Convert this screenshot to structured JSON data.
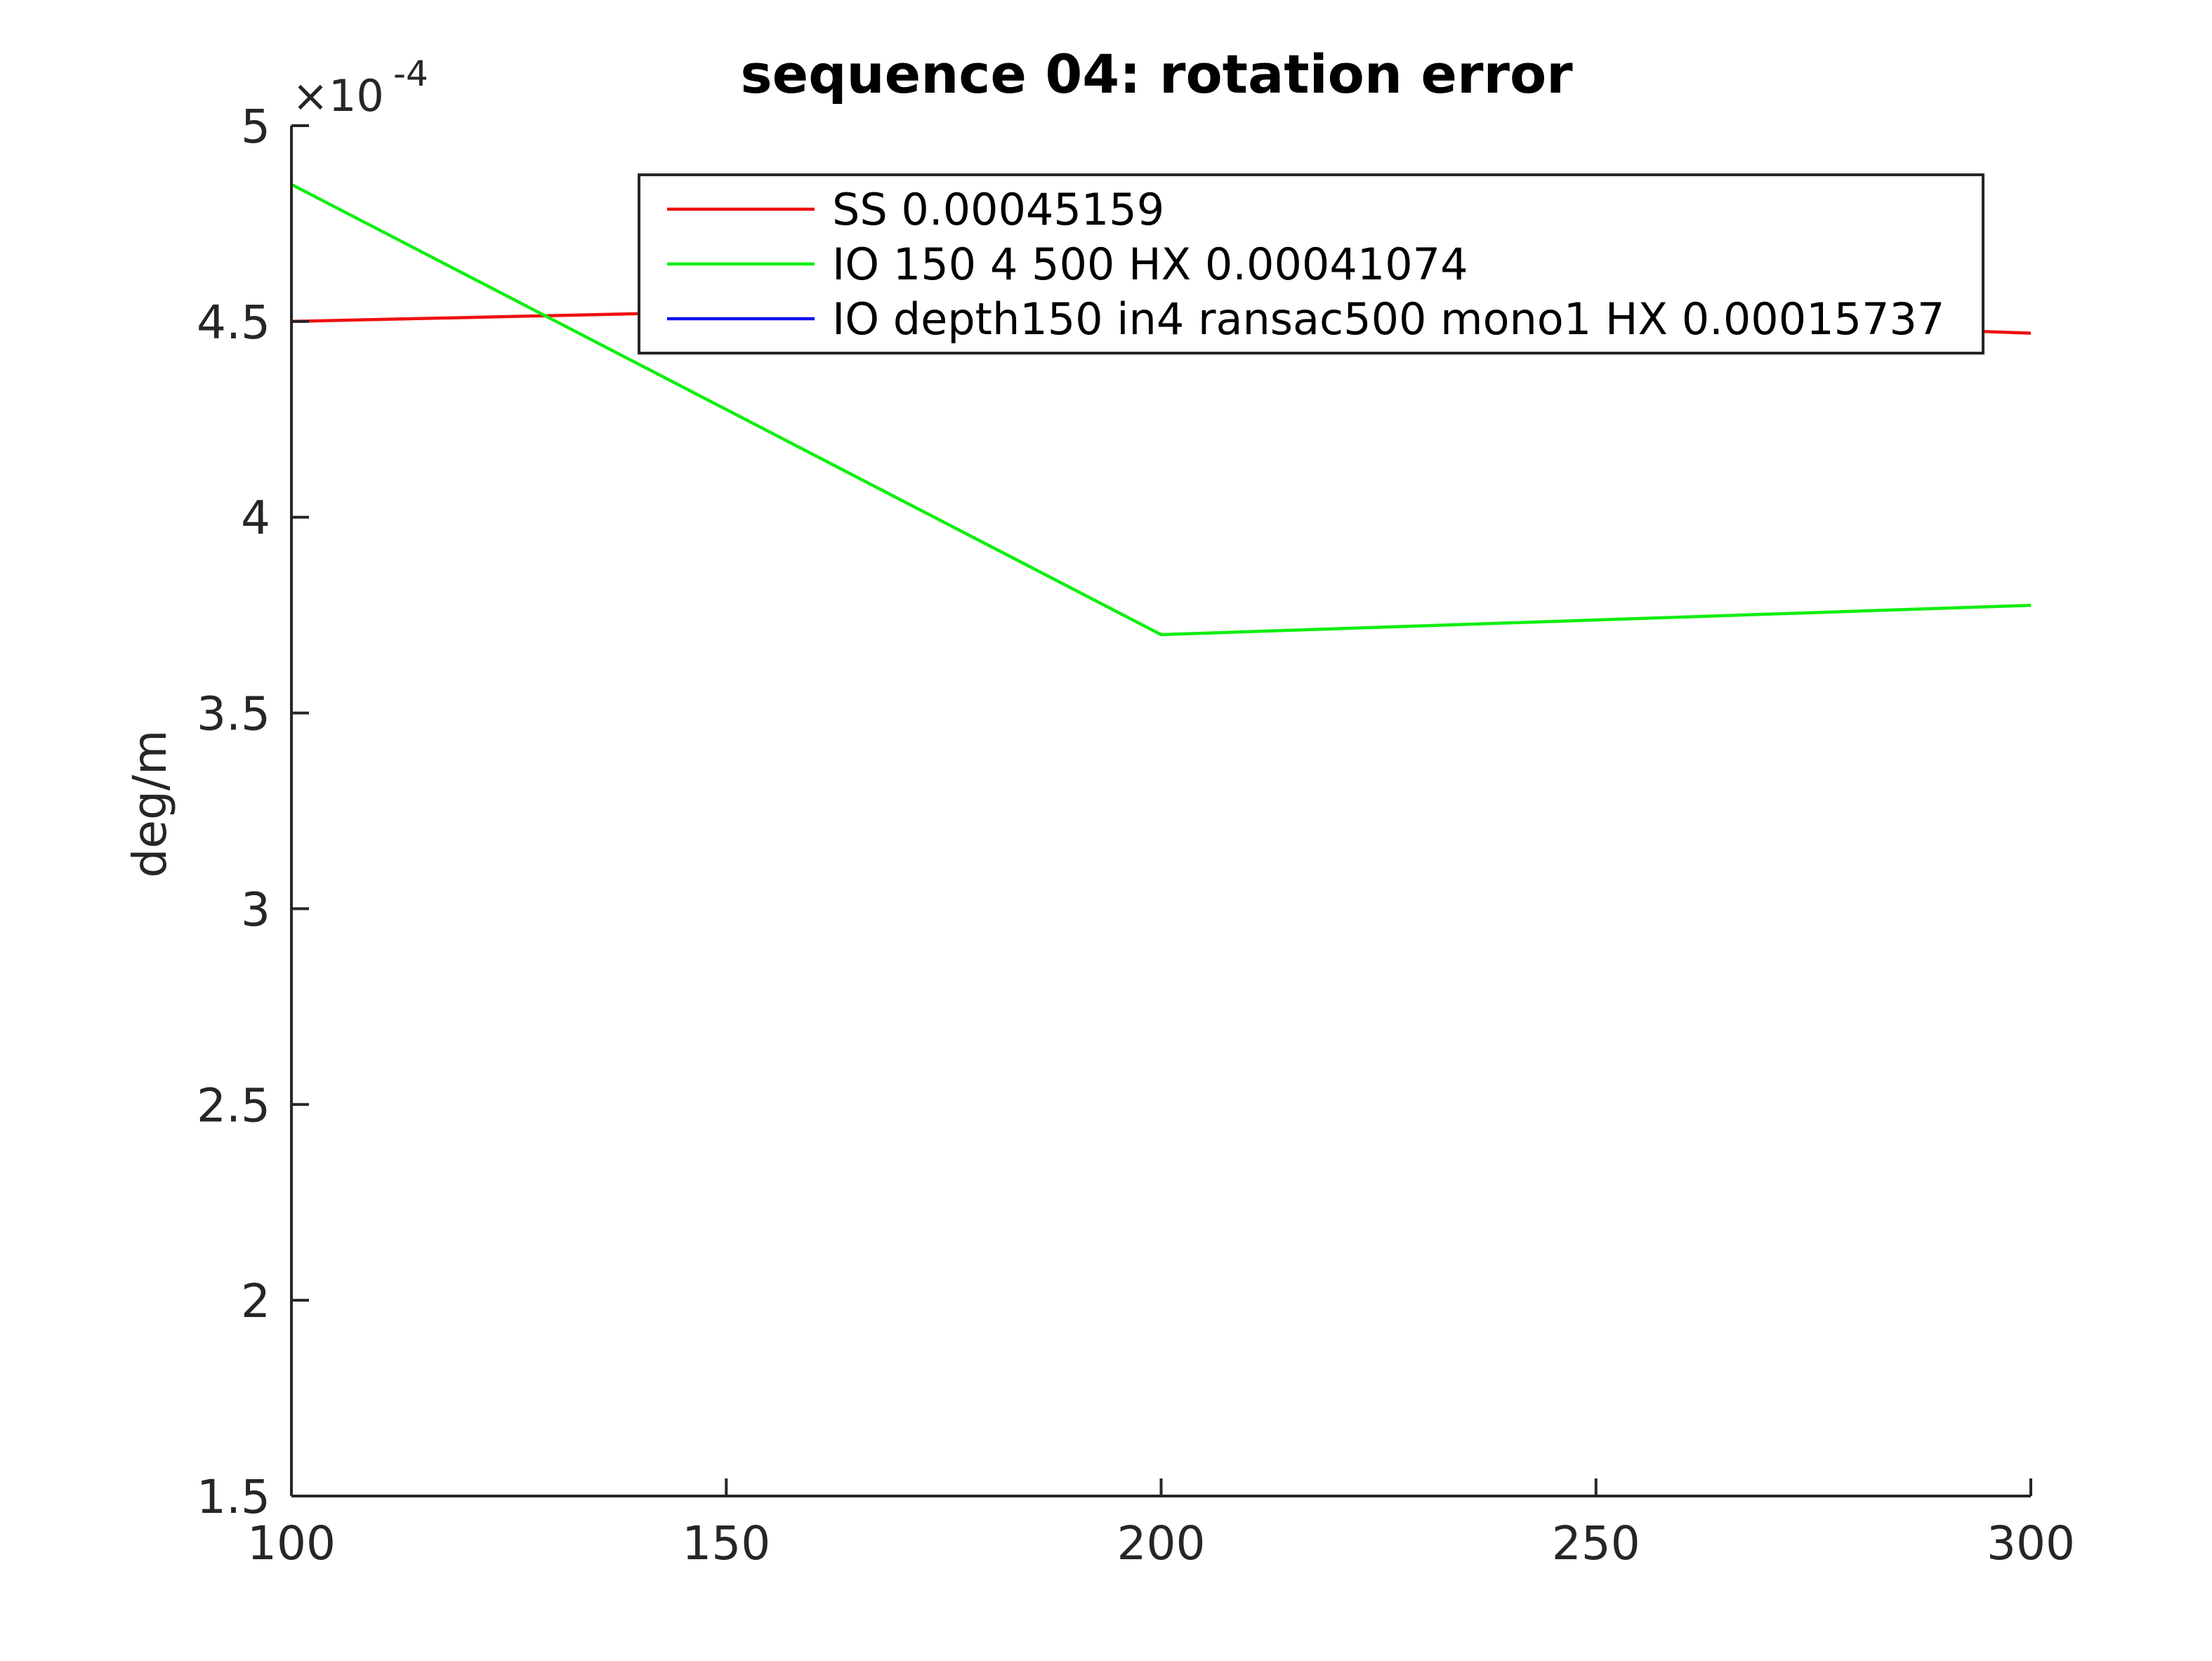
{
  "chart_data": {
    "type": "line",
    "title": "sequence 04: rotation error",
    "xlabel": "",
    "ylabel": "deg/m",
    "exponent_label": {
      "base": "×10",
      "power": "-4"
    },
    "xlim": [
      100,
      300
    ],
    "ylim": [
      1.5,
      5
    ],
    "x_ticks": [
      100,
      150,
      200,
      250,
      300
    ],
    "x_tick_labels": [
      "100",
      "150",
      "200",
      "250",
      "300"
    ],
    "y_ticks": [
      1.5,
      2,
      2.5,
      3,
      3.5,
      4,
      4.5,
      5
    ],
    "y_tick_labels": [
      "1.5",
      "2",
      "2.5",
      "3",
      "3.5",
      "4",
      "4.5",
      "5"
    ],
    "grid": false,
    "legend_position": "top-right",
    "series": [
      {
        "name": "SS 0.00045159",
        "color": "#ee1111",
        "x": [
          100,
          200,
          300
        ],
        "values": [
          4.5,
          4.55,
          4.47
        ]
      },
      {
        "name": "IO 150 4 500 HX 0.00041074",
        "color": "#11ee11",
        "x": [
          100,
          200,
          300
        ],
        "values": [
          4.85,
          3.7,
          3.775
        ]
      },
      {
        "name": "IO depth150 in4 ransac500 mono1 HX 0.00015737",
        "color": "#1111ee",
        "x": [],
        "values": []
      }
    ]
  }
}
